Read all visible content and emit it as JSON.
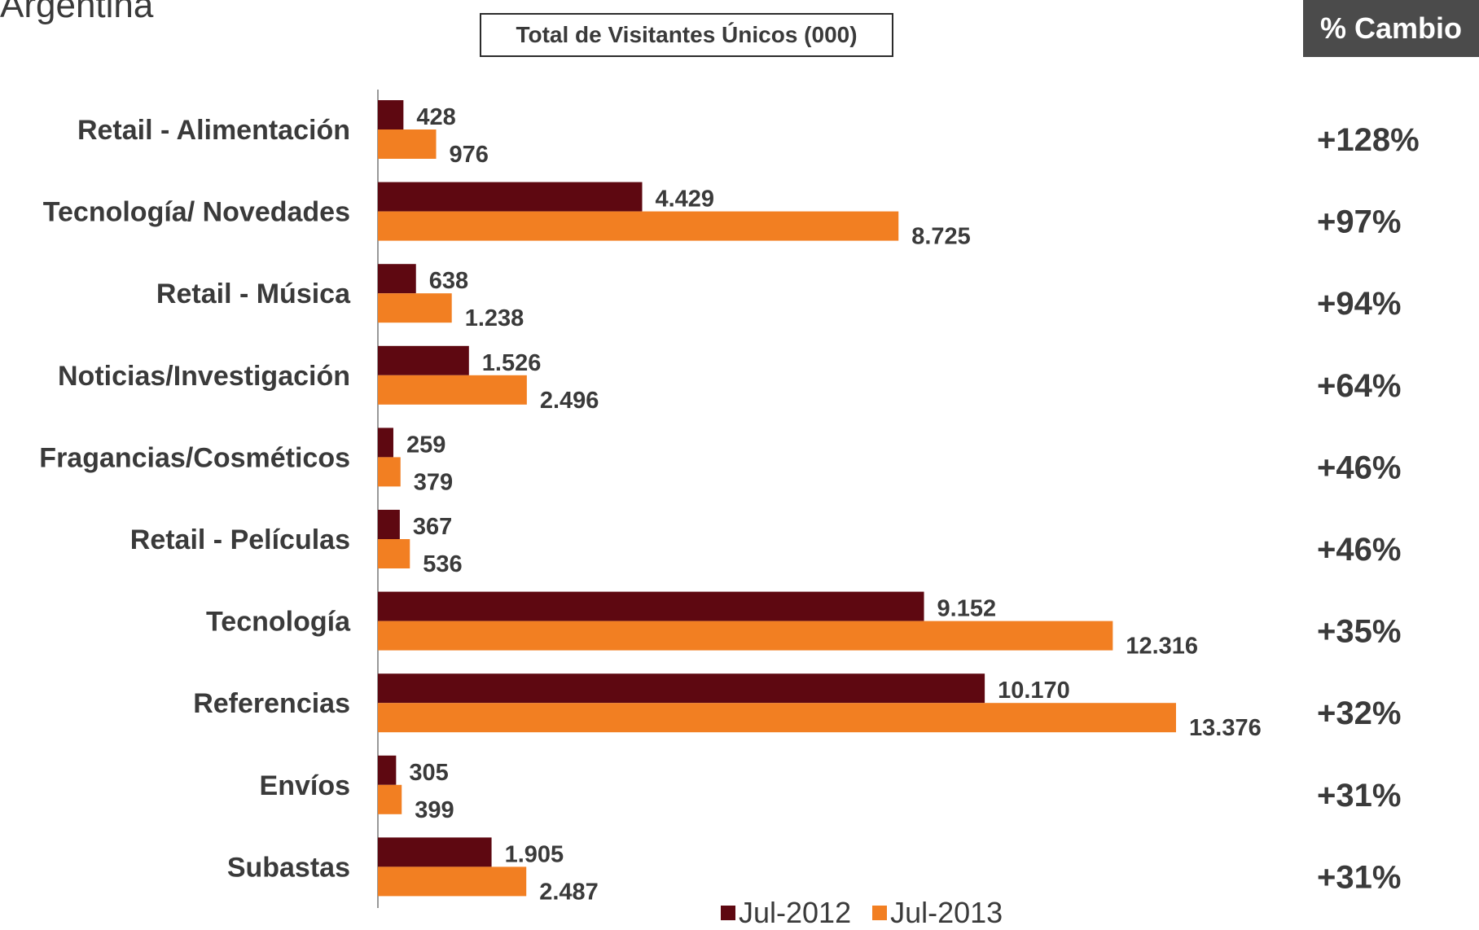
{
  "page": {
    "title": "Argentina",
    "change_header": "% Cambio"
  },
  "colors": {
    "jul2012": "#5e0811",
    "jul2013": "#f27f22",
    "axis": "#999999",
    "label_text": "#3a3a3a"
  },
  "chart_data": {
    "type": "bar",
    "orientation": "horizontal",
    "title": "Total de Visitantes Únicos (000)",
    "categories": [
      "Retail - Alimentación",
      "Tecnología/ Novedades",
      "Retail - Música",
      "Noticias/Investigación",
      "Fragancias/Cosméticos",
      "Retail - Películas",
      "Tecnología",
      "Referencias",
      "Envíos",
      "Subastas"
    ],
    "series": [
      {
        "name": "Jul-2012",
        "values": [
          428,
          4429,
          638,
          1526,
          259,
          367,
          9152,
          10170,
          305,
          1905
        ],
        "labels": [
          "428",
          "4.429",
          "638",
          "1.526",
          "259",
          "367",
          "9.152",
          "10.170",
          "305",
          "1.905"
        ]
      },
      {
        "name": "Jul-2013",
        "values": [
          976,
          8725,
          1238,
          2496,
          379,
          536,
          12316,
          13376,
          399,
          2487
        ],
        "labels": [
          "976",
          "8.725",
          "1.238",
          "2.496",
          "379",
          "536",
          "12.316",
          "13.376",
          "399",
          "2.487"
        ]
      }
    ],
    "percent_change": [
      "+128%",
      "+97%",
      "+94%",
      "+64%",
      "+46%",
      "+46%",
      "+35%",
      "+32%",
      "+31%",
      "+31%"
    ],
    "xlim": [
      0,
      13376
    ],
    "grid": false,
    "legend_position": "bottom"
  }
}
